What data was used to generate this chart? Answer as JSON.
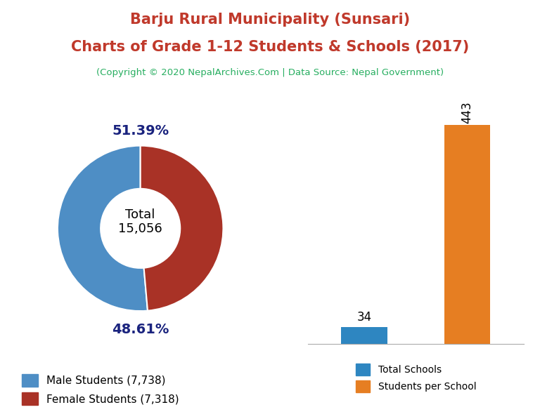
{
  "title_line1": "Barju Rural Municipality (Sunsari)",
  "title_line2": "Charts of Grade 1-12 Students & Schools (2017)",
  "subtitle": "(Copyright © 2020 NepalArchives.Com | Data Source: Nepal Government)",
  "title_color": "#c0392b",
  "subtitle_color": "#27ae60",
  "male_students": 7738,
  "female_students": 7318,
  "total_students": 15056,
  "male_pct": 51.39,
  "female_pct": 48.61,
  "male_color": "#4e8ec5",
  "female_color": "#a93226",
  "total_schools": 34,
  "students_per_school": 443,
  "bar_schools_color": "#2e86c1",
  "bar_students_color": "#e67e22",
  "donut_center_label": "Total\n15,056",
  "pct_label_color": "#1a237e",
  "background_color": "#ffffff"
}
